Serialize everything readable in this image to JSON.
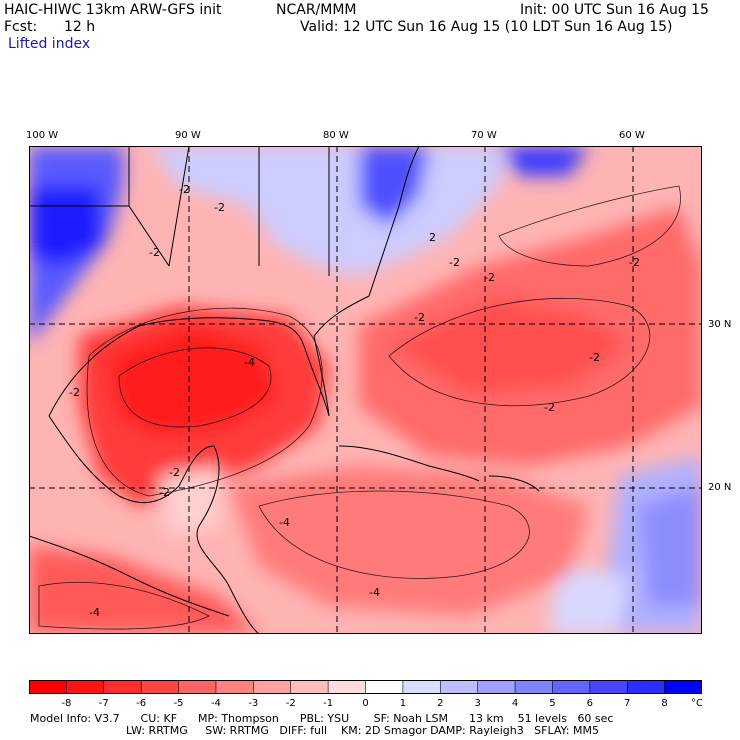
{
  "header": {
    "model": "HAIC-HIWC 13km ARW-GFS init",
    "org": "NCAR/MMM",
    "init": "Init: 00 UTC Sun 16 Aug 15",
    "fcst_label": "Fcst:",
    "fcst_value": "12 h",
    "valid": "Valid: 12 UTC Sun 16 Aug 15 (10 LDT Sun 16 Aug 15)",
    "field": "Lifted index"
  },
  "map": {
    "lon_labels": [
      "100 W",
      "90 W",
      "80 W",
      "70 W",
      "60 W"
    ],
    "lat_labels": [
      "30 N",
      "20 N"
    ],
    "contour_labels": [
      "-2",
      "-2",
      "-2",
      "-2",
      "-2",
      "-2",
      "-2",
      "-2",
      "-2",
      "-4",
      "-4",
      "-4",
      "-4",
      "2",
      "-2",
      "-2",
      "-2"
    ]
  },
  "colorbar": {
    "ticks": [
      "-8",
      "-7",
      "-6",
      "-5",
      "-4",
      "-3",
      "-2",
      "-1",
      "0",
      "1",
      "2",
      "3",
      "4",
      "5",
      "6",
      "7",
      "8"
    ],
    "unit": "°C",
    "colors": [
      "#ff0000",
      "#ff1414",
      "#ff2d2d",
      "#ff4646",
      "#ff6464",
      "#ff8282",
      "#ffa0a0",
      "#ffbebe",
      "#ffdcdc",
      "#ffffff",
      "#dcdcff",
      "#bebeff",
      "#a0a0ff",
      "#8282ff",
      "#6464ff",
      "#4646ff",
      "#2d2dff",
      "#0000ff"
    ]
  },
  "footer": {
    "line1": "Model Info: V3.7      CU: KF      MP: Thompson      PBL: YSU       SF: Noah LSM      13 km    51 levels   60 sec",
    "line2": "LW: RRTMG     SW: RRTMG   DIFF: full    KM: 2D Smagor DAMP: Rayleigh3   SFLAY: MM5"
  }
}
